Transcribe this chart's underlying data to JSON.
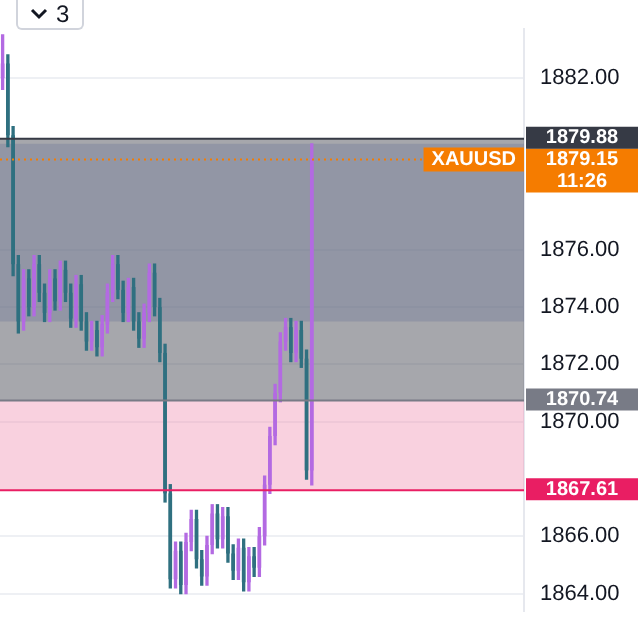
{
  "chart_data": {
    "type": "candlestick",
    "categories": [
      null,
      null,
      null,
      null,
      null,
      null,
      null,
      null,
      null,
      null,
      null,
      null,
      null,
      null,
      null,
      null,
      null,
      null,
      null,
      null,
      null,
      null,
      null,
      null,
      null,
      null,
      null,
      null,
      null,
      null,
      null,
      null,
      null,
      null,
      null,
      null,
      null,
      null,
      null,
      null,
      null,
      null,
      null,
      null,
      null,
      null,
      null,
      null,
      null,
      null,
      null,
      null,
      null,
      null,
      null,
      null,
      null,
      null,
      null,
      null,
      null,
      null,
      null,
      null,
      null,
      null,
      null,
      null,
      null,
      null,
      null,
      null,
      null,
      null,
      null,
      null,
      null,
      null,
      null,
      null,
      null,
      null,
      null,
      null,
      null,
      null,
      null,
      null,
      null,
      null,
      null,
      null,
      null,
      null,
      null,
      null,
      null,
      null,
      null,
      null
    ],
    "ohlc": [
      [
        1882.0,
        1883.5,
        1881.6,
        1882.5
      ],
      [
        1882.5,
        1882.8,
        1879.6,
        1880.0
      ],
      [
        1880.0,
        1880.3,
        1875.1,
        1875.5
      ],
      [
        1875.5,
        1875.8,
        1873.1,
        1873.5
      ],
      [
        1873.5,
        1875.3,
        1873.2,
        1875.0
      ],
      [
        1875.0,
        1875.3,
        1873.7,
        1874.0
      ],
      [
        1874.0,
        1875.8,
        1873.7,
        1875.5
      ],
      [
        1875.5,
        1875.8,
        1874.2,
        1874.5
      ],
      [
        1874.5,
        1874.8,
        1873.5,
        1873.8
      ],
      [
        1873.8,
        1875.3,
        1873.5,
        1875.0
      ],
      [
        1875.0,
        1875.3,
        1873.9,
        1874.2
      ],
      [
        1874.2,
        1875.6,
        1873.9,
        1875.3
      ],
      [
        1875.3,
        1875.6,
        1874.2,
        1874.5
      ],
      [
        1874.5,
        1874.8,
        1873.3,
        1873.6
      ],
      [
        1873.6,
        1875.1,
        1873.3,
        1874.8
      ],
      [
        1874.8,
        1875.1,
        1873.2,
        1873.5
      ],
      [
        1873.5,
        1873.8,
        1872.5,
        1872.8
      ],
      [
        1872.8,
        1873.5,
        1872.5,
        1873.2
      ],
      [
        1873.2,
        1873.5,
        1872.3,
        1872.6
      ],
      [
        1872.6,
        1873.7,
        1872.3,
        1873.4
      ],
      [
        1873.4,
        1874.8,
        1873.1,
        1874.5
      ],
      [
        1874.5,
        1875.8,
        1874.2,
        1875.5
      ],
      [
        1875.5,
        1875.8,
        1874.3,
        1874.6
      ],
      [
        1874.6,
        1874.9,
        1873.5,
        1873.8
      ],
      [
        1873.8,
        1875.0,
        1873.5,
        1874.7
      ],
      [
        1874.7,
        1875.0,
        1873.2,
        1873.5
      ],
      [
        1873.5,
        1873.8,
        1872.6,
        1872.9
      ],
      [
        1872.9,
        1874.1,
        1872.6,
        1873.8
      ],
      [
        1873.8,
        1875.5,
        1873.5,
        1875.2
      ],
      [
        1875.2,
        1875.5,
        1873.7,
        1874.0
      ],
      [
        1874.0,
        1874.3,
        1872.1,
        1872.4
      ],
      [
        1872.4,
        1872.7,
        1867.2,
        1867.5
      ],
      [
        1867.5,
        1867.8,
        1864.2,
        1864.5
      ],
      [
        1864.5,
        1865.8,
        1864.2,
        1865.5
      ],
      [
        1865.5,
        1865.8,
        1864.0,
        1864.3
      ],
      [
        1864.3,
        1866.1,
        1864.0,
        1865.8
      ],
      [
        1865.8,
        1866.9,
        1865.5,
        1866.6
      ],
      [
        1866.6,
        1866.9,
        1864.9,
        1865.2
      ],
      [
        1865.2,
        1865.5,
        1864.3,
        1864.6
      ],
      [
        1864.6,
        1866.0,
        1864.3,
        1865.7
      ],
      [
        1865.7,
        1867.1,
        1865.4,
        1866.8
      ],
      [
        1866.8,
        1867.1,
        1865.6,
        1865.9
      ],
      [
        1865.9,
        1867.0,
        1865.6,
        1866.7
      ],
      [
        1866.7,
        1867.0,
        1865.1,
        1865.4
      ],
      [
        1865.4,
        1865.7,
        1864.5,
        1864.8
      ],
      [
        1864.8,
        1865.9,
        1864.5,
        1865.6
      ],
      [
        1865.6,
        1865.9,
        1864.1,
        1864.4
      ],
      [
        1864.4,
        1865.6,
        1864.1,
        1865.3
      ],
      [
        1865.3,
        1865.6,
        1864.6,
        1864.9
      ],
      [
        1864.9,
        1866.3,
        1864.6,
        1866.0
      ],
      [
        1866.0,
        1868.1,
        1865.7,
        1867.8
      ],
      [
        1867.8,
        1869.8,
        1867.5,
        1869.5
      ],
      [
        1869.5,
        1871.3,
        1869.2,
        1871.0
      ],
      [
        1871.0,
        1873.1,
        1870.7,
        1872.8
      ],
      [
        1872.8,
        1873.6,
        1872.5,
        1873.3
      ],
      [
        1873.3,
        1873.6,
        1872.1,
        1872.4
      ],
      [
        1872.4,
        1873.5,
        1872.1,
        1873.2
      ],
      [
        1873.2,
        1873.5,
        1871.9,
        1872.2
      ],
      [
        1872.2,
        1872.5,
        1868.0,
        1868.3
      ],
      [
        1868.3,
        1879.7,
        1867.8,
        1879.15
      ],
      null,
      null,
      null,
      null,
      null,
      null,
      null,
      null,
      null,
      null,
      null,
      null,
      null,
      null,
      null,
      null,
      null,
      null,
      null,
      null,
      null,
      null,
      null,
      null,
      null,
      null,
      null,
      null,
      null,
      null,
      null,
      null,
      null,
      null,
      null,
      null,
      null,
      null,
      null,
      null
    ],
    "colors": [
      "#b36ae2",
      "#2f7080",
      "#2f7080",
      "#2f7080",
      "#b36ae2",
      "#2f7080",
      "#b36ae2",
      "#2f7080",
      "#2f7080",
      "#b36ae2",
      "#2f7080",
      "#b36ae2",
      "#2f7080",
      "#2f7080",
      "#b36ae2",
      "#2f7080",
      "#2f7080",
      "#b36ae2",
      "#2f7080",
      "#b36ae2",
      "#b36ae2",
      "#b36ae2",
      "#2f7080",
      "#2f7080",
      "#b36ae2",
      "#2f7080",
      "#2f7080",
      "#b36ae2",
      "#b36ae2",
      "#2f7080",
      "#2f7080",
      "#2f7080",
      "#2f7080",
      "#b36ae2",
      "#2f7080",
      "#b36ae2",
      "#b36ae2",
      "#2f7080",
      "#2f7080",
      "#b36ae2",
      "#b36ae2",
      "#2f7080",
      "#b36ae2",
      "#2f7080",
      "#2f7080",
      "#b36ae2",
      "#2f7080",
      "#b36ae2",
      "#2f7080",
      "#b36ae2",
      "#b36ae2",
      "#b36ae2",
      "#b36ae2",
      "#b36ae2",
      "#b36ae2",
      "#2f7080",
      "#b36ae2",
      "#2f7080",
      "#2f7080",
      "#b36ae2",
      null,
      null,
      null,
      null,
      null,
      null,
      null,
      null,
      null,
      null,
      null,
      null,
      null,
      null,
      null,
      null,
      null,
      null,
      null,
      null,
      null,
      null,
      null,
      null,
      null,
      null,
      null,
      null,
      null,
      null,
      null,
      null,
      null,
      null,
      null,
      null,
      null,
      null,
      null,
      null
    ],
    "ylim": [
      1863.4,
      1883.7
    ],
    "yticks": [
      {
        "value": 1864,
        "label": "1864.00"
      },
      {
        "value": 1866,
        "label": "1866.00"
      },
      {
        "value": 1870,
        "label": "1870.00"
      },
      {
        "value": 1872,
        "label": "1872.00"
      },
      {
        "value": 1874,
        "label": "1874.00"
      },
      {
        "value": 1876,
        "label": "1876.00"
      },
      {
        "value": 1882,
        "label": "1882.00"
      }
    ],
    "bands": [
      {
        "axis": "y",
        "from": 1873.5,
        "to": 1879.7,
        "color": "#8f9fd6"
      },
      {
        "axis": "y",
        "from": 1870.74,
        "to": 1879.88,
        "color": "#5d5f68"
      },
      {
        "axis": "y",
        "from": 1867.61,
        "to": 1870.74,
        "color": "#f08cb0"
      }
    ],
    "ref_lines": [
      {
        "axis": "y",
        "value": 1879.15,
        "label": "XAUUSD",
        "color": "#f57c00",
        "line_style": "dotted"
      },
      {
        "axis": "y",
        "value": 1879.88,
        "label": "1879.88",
        "color": "#363a45"
      },
      {
        "axis": "y",
        "value": 1870.74,
        "label": "1870.74",
        "color": "#787b86"
      },
      {
        "axis": "y",
        "value": 1867.61,
        "label": "1867.61",
        "color": "#e91e63"
      }
    ],
    "annotations": [
      "1879.15",
      "11:26",
      "3"
    ],
    "grid": "y",
    "legend": false,
    "tick_labels": "y"
  }
}
